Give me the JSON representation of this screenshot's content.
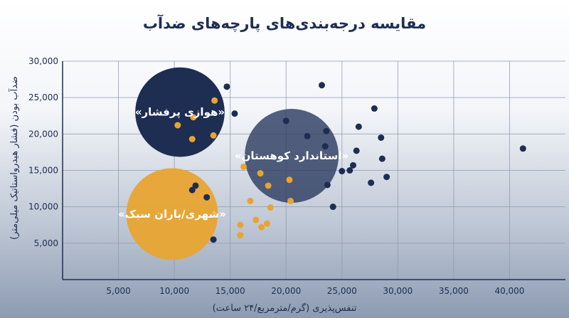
{
  "chart_data": {
    "type": "scatter",
    "title": "مقایسه درجه‌بندی‌های پارچه‌های ضدآب",
    "xlabel": "تنفس‌پذیری (گرم/مترمربع/۲۴ ساعت)",
    "ylabel": "ضدآب بودن (فشار هیدرواستاتیک میلی‌متر)",
    "xlim": [
      0,
      45000
    ],
    "ylim": [
      0,
      30000
    ],
    "x_ticks": [
      {
        "value": 5000,
        "label": "5,000"
      },
      {
        "value": 10000,
        "label": "10,000"
      },
      {
        "value": 15000,
        "label": "15,000"
      },
      {
        "value": 20000,
        "label": "20,000"
      },
      {
        "value": 25000,
        "label": "25,000"
      },
      {
        "value": 30000,
        "label": "30,000"
      },
      {
        "value": 35000,
        "label": "35,000"
      },
      {
        "value": 40000,
        "label": "40,000"
      }
    ],
    "y_ticks": [
      {
        "value": 5000,
        "label": "5,000"
      },
      {
        "value": 10000,
        "label": "10,000"
      },
      {
        "value": 15000,
        "label": "15,000"
      },
      {
        "value": 20000,
        "label": "20,000"
      },
      {
        "value": 25000,
        "label": "25,000"
      },
      {
        "value": 30000,
        "label": "30,000"
      }
    ],
    "grid": true,
    "colors": {
      "navy": "#1e2d52",
      "slate": "#2e3d62",
      "orange": "#e8a431"
    },
    "clusters": [
      {
        "label": "«هوازی پرفشار»",
        "x": 10500,
        "y": 23000,
        "r": 4000,
        "color": "#1e2d52",
        "opacity": 1.0
      },
      {
        "label": "«استاندارد کوهستان»",
        "x": 20500,
        "y": 17000,
        "r": 4200,
        "color": "#2e3d62",
        "opacity": 0.82
      },
      {
        "label": "«شهری/باران سبک»",
        "x": 9800,
        "y": 9000,
        "r": 4100,
        "color": "#e8a431",
        "opacity": 0.95
      }
    ],
    "series": [
      {
        "color": "#1e2d52",
        "points": [
          [
            14700,
            26500
          ],
          [
            23200,
            26700
          ],
          [
            15400,
            22800
          ],
          [
            20000,
            21800
          ],
          [
            21900,
            19700
          ],
          [
            23600,
            20400
          ],
          [
            23500,
            18300
          ],
          [
            27900,
            23500
          ],
          [
            26500,
            21000
          ],
          [
            28500,
            19500
          ],
          [
            26300,
            17700
          ],
          [
            28600,
            16600
          ],
          [
            26000,
            15700
          ],
          [
            25700,
            15000
          ],
          [
            25000,
            14900
          ],
          [
            29000,
            14100
          ],
          [
            27600,
            13300
          ],
          [
            23700,
            13000
          ],
          [
            24200,
            10000
          ],
          [
            11900,
            12900
          ],
          [
            11600,
            12300
          ],
          [
            12900,
            11300
          ],
          [
            13500,
            5500
          ],
          [
            41200,
            18000
          ]
        ]
      },
      {
        "color": "#e8a431",
        "points": [
          [
            13600,
            24600
          ],
          [
            11700,
            22300
          ],
          [
            10300,
            21200
          ],
          [
            11600,
            19300
          ],
          [
            13500,
            19800
          ],
          [
            16200,
            15500
          ],
          [
            17700,
            14600
          ],
          [
            18400,
            12900
          ],
          [
            20300,
            13700
          ],
          [
            16800,
            10800
          ],
          [
            18600,
            9900
          ],
          [
            20400,
            10800
          ],
          [
            17300,
            8200
          ],
          [
            18300,
            7700
          ],
          [
            17800,
            7200
          ],
          [
            15900,
            7500
          ],
          [
            15900,
            6100
          ]
        ]
      }
    ]
  }
}
